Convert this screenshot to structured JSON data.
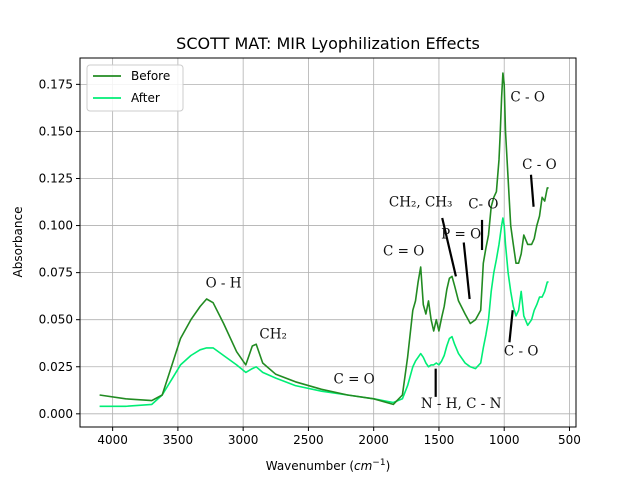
{
  "chart_data": {
    "type": "line",
    "title": "SCOTT MAT: MIR Lyophilization Effects",
    "xlabel": "Wavenumber (cm⁻¹)",
    "xlabel_base": "Wavenumber (",
    "xlabel_unit": "cm",
    "xlabel_exp": "−1",
    "xlabel_close": ")",
    "ylabel": "Absorbance",
    "xlim": [
      4250,
      450
    ],
    "ylim": [
      -0.007,
      0.189
    ],
    "x_reversed": true,
    "grid": true,
    "legend_position": "upper left",
    "x_ticks": [
      4000,
      3500,
      3000,
      2500,
      2000,
      1500,
      1000,
      500
    ],
    "x_tick_labels": [
      "4000",
      "3500",
      "3000",
      "2500",
      "2000",
      "1500",
      "1000",
      "500"
    ],
    "y_ticks": [
      0.0,
      0.025,
      0.05,
      0.075,
      0.1,
      0.125,
      0.15,
      0.175
    ],
    "y_tick_labels": [
      "0.000",
      "0.025",
      "0.050",
      "0.075",
      "0.100",
      "0.125",
      "0.150",
      "0.175"
    ],
    "series": [
      {
        "name": "Before",
        "color": "#228b22",
        "x": [
          4100,
          3900,
          3700,
          3620,
          3550,
          3480,
          3400,
          3330,
          3280,
          3230,
          3150,
          3050,
          2980,
          2930,
          2900,
          2850,
          2750,
          2600,
          2400,
          2200,
          2000,
          1850,
          1780,
          1740,
          1700,
          1680,
          1660,
          1640,
          1620,
          1600,
          1580,
          1560,
          1540,
          1520,
          1500,
          1480,
          1460,
          1440,
          1420,
          1400,
          1380,
          1350,
          1300,
          1260,
          1220,
          1180,
          1160,
          1140,
          1120,
          1100,
          1080,
          1060,
          1040,
          1030,
          1020,
          1010,
          1000,
          990,
          970,
          950,
          930,
          910,
          890,
          870,
          850,
          820,
          790,
          770,
          750,
          730,
          710,
          690,
          670,
          660
        ],
        "y": [
          0.01,
          0.008,
          0.007,
          0.01,
          0.025,
          0.04,
          0.05,
          0.057,
          0.061,
          0.059,
          0.048,
          0.033,
          0.026,
          0.036,
          0.037,
          0.027,
          0.021,
          0.017,
          0.013,
          0.01,
          0.008,
          0.005,
          0.01,
          0.03,
          0.055,
          0.06,
          0.07,
          0.078,
          0.058,
          0.053,
          0.06,
          0.05,
          0.044,
          0.05,
          0.044,
          0.051,
          0.057,
          0.066,
          0.072,
          0.073,
          0.068,
          0.06,
          0.053,
          0.048,
          0.05,
          0.055,
          0.08,
          0.088,
          0.095,
          0.11,
          0.115,
          0.118,
          0.135,
          0.15,
          0.168,
          0.181,
          0.175,
          0.15,
          0.125,
          0.1,
          0.09,
          0.08,
          0.08,
          0.085,
          0.095,
          0.09,
          0.09,
          0.093,
          0.1,
          0.105,
          0.115,
          0.113,
          0.12,
          0.12
        ]
      },
      {
        "name": "After",
        "color": "#00ee76",
        "x": [
          4100,
          3900,
          3700,
          3620,
          3550,
          3480,
          3400,
          3330,
          3280,
          3230,
          3150,
          3050,
          2980,
          2930,
          2900,
          2850,
          2750,
          2600,
          2400,
          2200,
          2000,
          1850,
          1780,
          1740,
          1700,
          1680,
          1660,
          1640,
          1620,
          1600,
          1580,
          1560,
          1540,
          1520,
          1500,
          1480,
          1460,
          1440,
          1420,
          1400,
          1380,
          1350,
          1300,
          1260,
          1220,
          1180,
          1160,
          1140,
          1120,
          1100,
          1080,
          1060,
          1040,
          1030,
          1020,
          1010,
          1000,
          990,
          970,
          950,
          930,
          910,
          890,
          870,
          850,
          820,
          790,
          770,
          750,
          730,
          710,
          690,
          670,
          660
        ],
        "y": [
          0.004,
          0.004,
          0.005,
          0.01,
          0.018,
          0.026,
          0.031,
          0.034,
          0.035,
          0.035,
          0.031,
          0.026,
          0.022,
          0.024,
          0.025,
          0.022,
          0.019,
          0.015,
          0.012,
          0.01,
          0.008,
          0.006,
          0.008,
          0.015,
          0.025,
          0.028,
          0.03,
          0.032,
          0.03,
          0.027,
          0.025,
          0.026,
          0.026,
          0.027,
          0.026,
          0.028,
          0.031,
          0.036,
          0.04,
          0.041,
          0.037,
          0.032,
          0.027,
          0.025,
          0.024,
          0.027,
          0.035,
          0.042,
          0.05,
          0.065,
          0.075,
          0.082,
          0.09,
          0.095,
          0.1,
          0.104,
          0.1,
          0.09,
          0.075,
          0.065,
          0.057,
          0.052,
          0.055,
          0.065,
          0.052,
          0.047,
          0.05,
          0.055,
          0.058,
          0.062,
          0.062,
          0.065,
          0.07,
          0.07
        ]
      }
    ],
    "annotations": [
      {
        "id": "oh",
        "text": "O - H",
        "x": 3150,
        "y": 0.067
      },
      {
        "id": "ch2",
        "text": "CH₂",
        "x": 2770,
        "y": 0.04
      },
      {
        "id": "co-double-left",
        "text": "C = O",
        "x": 2150,
        "y": 0.016
      },
      {
        "id": "co-double-mid",
        "text": "C = O",
        "x": 1770,
        "y": 0.084
      },
      {
        "id": "ch2ch3",
        "text": "CH₂, CH₃",
        "x": 1640,
        "y": 0.11
      },
      {
        "id": "po",
        "text": "P = O",
        "x": 1330,
        "y": 0.093
      },
      {
        "id": "c-o-mid",
        "text": "C-  O",
        "x": 1160,
        "y": 0.109
      },
      {
        "id": "c-o-top",
        "text": "C - O",
        "x": 820,
        "y": 0.166
      },
      {
        "id": "c-o-right",
        "text": "C - O",
        "x": 730,
        "y": 0.13
      },
      {
        "id": "nh-cn",
        "text": "N - H, C - N",
        "x": 1330,
        "y": 0.003
      },
      {
        "id": "c-o-low",
        "text": "C - O",
        "x": 870,
        "y": 0.031
      }
    ],
    "pointer_lines": [
      {
        "x1": 1475,
        "y1": 0.104,
        "x2": 1370,
        "y2": 0.073
      },
      {
        "x1": 1310,
        "y1": 0.091,
        "x2": 1265,
        "y2": 0.061
      },
      {
        "x1": 1170,
        "y1": 0.103,
        "x2": 1170,
        "y2": 0.087
      },
      {
        "x1": 795,
        "y1": 0.127,
        "x2": 775,
        "y2": 0.11
      },
      {
        "x1": 1525,
        "y1": 0.009,
        "x2": 1525,
        "y2": 0.024
      },
      {
        "x1": 960,
        "y1": 0.038,
        "x2": 935,
        "y2": 0.055
      }
    ]
  }
}
